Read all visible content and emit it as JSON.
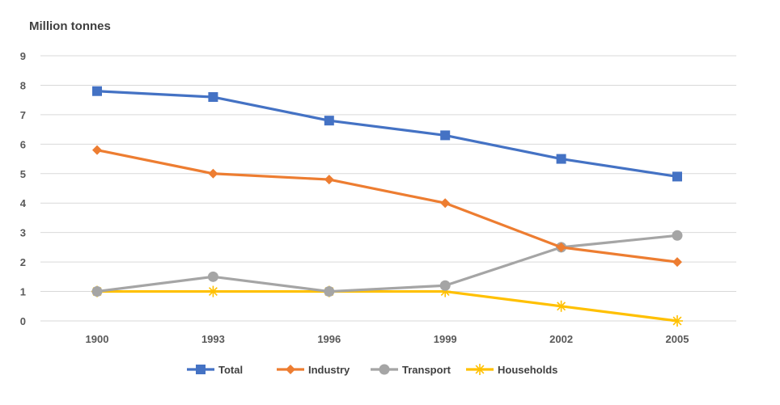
{
  "chart_data": {
    "type": "line",
    "title": "",
    "ylabel": "Million tonnes",
    "xlabel": "",
    "categories": [
      "1900",
      "1993",
      "1996",
      "1999",
      "2002",
      "2005"
    ],
    "ylim": [
      0,
      9
    ],
    "yticks": [
      0,
      1,
      2,
      3,
      4,
      5,
      6,
      7,
      8,
      9
    ],
    "grid": true,
    "legend_position": "bottom",
    "series": [
      {
        "name": "Total",
        "values": [
          7.8,
          7.6,
          6.8,
          6.3,
          5.5,
          4.9
        ],
        "color": "#4472C4",
        "marker": "square"
      },
      {
        "name": "Industry",
        "values": [
          5.8,
          5.0,
          4.8,
          4.0,
          2.5,
          2.0
        ],
        "color": "#ED7D31",
        "marker": "diamond"
      },
      {
        "name": "Transport",
        "values": [
          1.0,
          1.5,
          1.0,
          1.2,
          2.5,
          2.9
        ],
        "color": "#A5A5A5",
        "marker": "circle"
      },
      {
        "name": "Households",
        "values": [
          1.0,
          1.0,
          1.0,
          1.0,
          0.5,
          0.0
        ],
        "color": "#FFC000",
        "marker": "star"
      }
    ]
  }
}
